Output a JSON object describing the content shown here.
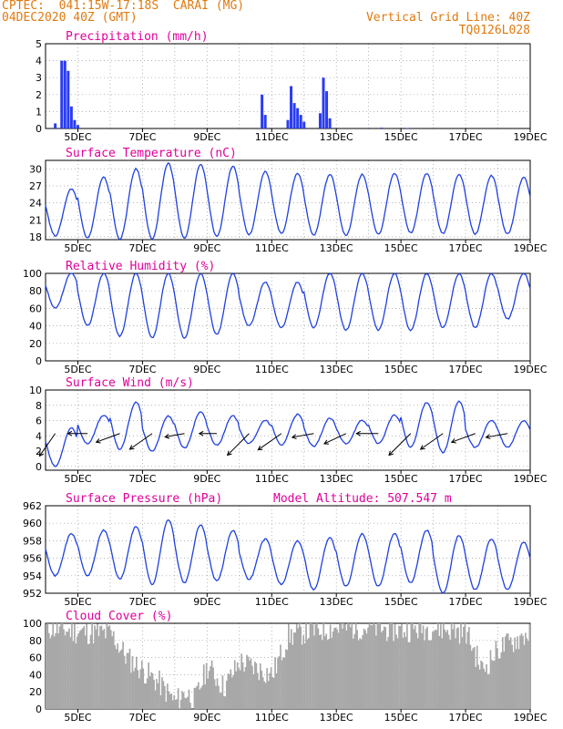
{
  "header": {
    "line1": "CPTEC:  041:15W-17:18S  CARAI (MG)",
    "line2": "04DEC2020 40Z (GMT)",
    "right1": "Vertical Grid Line: 40Z",
    "right2": "TQ0126L028"
  },
  "colors": {
    "header": "#e07a10",
    "title": "#e0009a",
    "line": "#2040e0",
    "bar": "#2a3cf0",
    "cloud": "#a8a8a8"
  },
  "x_ticks": [
    "5DEC",
    "7DEC",
    "9DEC",
    "11DEC",
    "13DEC",
    "15DEC",
    "17DEC",
    "19DEC"
  ],
  "chart_data": [
    {
      "type": "bar",
      "title": "Precipitation (mm/h)",
      "ylim": [
        0,
        5
      ],
      "yticks": [
        "0",
        "1",
        "2",
        "3",
        "4",
        "5"
      ],
      "events": [
        [
          0.3,
          0.3
        ],
        [
          0.5,
          4.0
        ],
        [
          0.6,
          4.0
        ],
        [
          0.7,
          3.4
        ],
        [
          0.8,
          1.3
        ],
        [
          0.9,
          0.5
        ],
        [
          1.0,
          0.2
        ],
        [
          6.7,
          2.0
        ],
        [
          6.8,
          0.8
        ],
        [
          7.5,
          0.5
        ],
        [
          7.6,
          2.5
        ],
        [
          7.7,
          1.5
        ],
        [
          7.8,
          1.2
        ],
        [
          7.9,
          0.8
        ],
        [
          8.0,
          0.4
        ],
        [
          8.5,
          0.9
        ],
        [
          8.6,
          3.0
        ],
        [
          8.7,
          2.2
        ],
        [
          8.8,
          0.6
        ],
        [
          10.4,
          0.05
        ],
        [
          11.2,
          0.03
        ]
      ]
    },
    {
      "type": "line",
      "title": "Surface Temperature (nC)",
      "ylim": [
        17.5,
        31.5
      ],
      "yticks": [
        "18",
        "21",
        "24",
        "27",
        "30"
      ],
      "daily_max": [
        26.5,
        28.5,
        30.0,
        31.0,
        30.8,
        30.5,
        29.5,
        29.2,
        29.0,
        29.0,
        29.2,
        29.2,
        29.0,
        28.8,
        28.5
      ],
      "daily_min": [
        18.2,
        17.8,
        17.6,
        17.6,
        17.7,
        18.0,
        18.4,
        18.6,
        18.3,
        18.2,
        18.4,
        18.7,
        18.6,
        18.5
      ]
    },
    {
      "type": "line",
      "title": "Relative Humidity (%)",
      "ylim": [
        0,
        100
      ],
      "yticks": [
        "0",
        "20",
        "40",
        "60",
        "80",
        "100"
      ],
      "daily_max": [
        100,
        100,
        100,
        100,
        100,
        100,
        90,
        90,
        100,
        100,
        100,
        100,
        100,
        100
      ],
      "daily_min": [
        60,
        40,
        28,
        26,
        26,
        30,
        40,
        38,
        38,
        35,
        35,
        35,
        38,
        38,
        48
      ]
    },
    {
      "type": "line",
      "title": "Surface Wind (m/s)",
      "ylim": [
        -0.5,
        10
      ],
      "yticks": [
        "0",
        "2",
        "4",
        "6",
        "8",
        "10"
      ],
      "daily_max": [
        5.0,
        6.7,
        8.4,
        6.6,
        7.1,
        6.6,
        6.0,
        6.8,
        6.3,
        6.0,
        6.7,
        8.4,
        8.5,
        6.0
      ],
      "daily_min": [
        0.0,
        3.0,
        2.2,
        2.0,
        2.4,
        2.8,
        3.0,
        2.8,
        2.6,
        3.0,
        3.0,
        2.5,
        1.8,
        2.5
      ],
      "vectors_at_day": [
        0.3,
        1.3,
        2.3,
        3.3,
        4.3,
        5.3,
        6.3,
        7.3,
        8.3,
        9.3,
        10.3,
        11.3,
        12.3,
        13.3,
        14.3
      ],
      "vector_angles_deg": [
        235,
        180,
        200,
        215,
        190,
        180,
        225,
        215,
        190,
        205,
        180,
        225,
        215,
        200,
        190
      ],
      "vector_speeds": [
        2.5,
        1.8,
        2.3,
        2.5,
        1.8,
        1.6,
        2.8,
        2.6,
        2.0,
        2.2,
        2.0,
        2.8,
        2.5,
        2.3,
        2.0
      ]
    },
    {
      "type": "line",
      "title": "Surface Pressure (hPa)",
      "annotation": "Model Altitude: 507.547 m",
      "ylim": [
        952,
        962
      ],
      "yticks": [
        "952",
        "954",
        "956",
        "958",
        "960",
        "962"
      ],
      "daily_max": [
        958.8,
        959.2,
        959.6,
        960.4,
        959.8,
        959.2,
        958.2,
        958.0,
        958.4,
        958.8,
        958.8,
        959.2,
        958.6,
        958.2,
        957.8
      ],
      "daily_min": [
        954.0,
        954.0,
        953.6,
        953.0,
        953.2,
        953.4,
        953.6,
        953.0,
        952.4,
        952.8,
        952.8,
        953.2,
        952.0,
        952.4
      ]
    },
    {
      "type": "area",
      "title": "Cloud Cover (%)",
      "ylim": [
        0,
        100
      ],
      "yticks": [
        "0",
        "20",
        "40",
        "60",
        "80",
        "100"
      ],
      "profile": [
        [
          0,
          95
        ],
        [
          1,
          90
        ],
        [
          2,
          88
        ],
        [
          2.5,
          60
        ],
        [
          3,
          45
        ],
        [
          3.5,
          30
        ],
        [
          4,
          8
        ],
        [
          4.3,
          20
        ],
        [
          4.6,
          10
        ],
        [
          5,
          50
        ],
        [
          5.5,
          25
        ],
        [
          6,
          55
        ],
        [
          7,
          40
        ],
        [
          7.5,
          85
        ],
        [
          8,
          90
        ],
        [
          9,
          95
        ],
        [
          10,
          95
        ],
        [
          11,
          92
        ],
        [
          12,
          95
        ],
        [
          13,
          90
        ],
        [
          13.5,
          45
        ],
        [
          14,
          70
        ],
        [
          15,
          90
        ]
      ]
    }
  ]
}
